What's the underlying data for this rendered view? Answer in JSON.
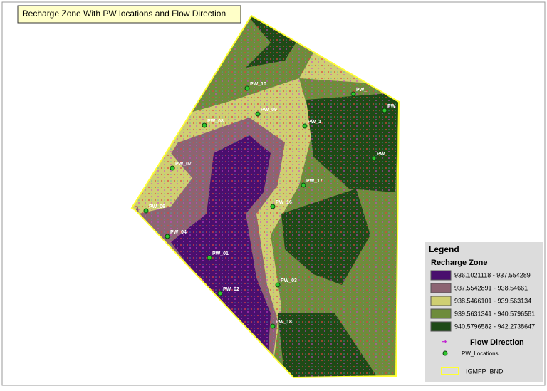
{
  "title": "Recharge Zone With PW locations and Flow Direction",
  "legend": {
    "title": "Legend",
    "recharge_zone": {
      "title": "Recharge Zone",
      "classes": [
        {
          "label": "936.1021118 - 937.554289",
          "color": "#4a0f6e"
        },
        {
          "label": "937.5542891 - 938.54661",
          "color": "#8c6472"
        },
        {
          "label": "938.5466101 - 939.563134",
          "color": "#cfcf72"
        },
        {
          "label": "939.5631341 - 940.5796581",
          "color": "#6e8c3c"
        },
        {
          "label": "940.5796582 - 942.2738647",
          "color": "#1e4a16"
        }
      ]
    },
    "flow_direction": "Flow Direction",
    "pw_locations": "PW_Locations",
    "boundary": "IGMFP_BND"
  },
  "wells": [
    "PW_10",
    "PW_09",
    "PW_08",
    "PW_07",
    "PW_06",
    "PW_04",
    "PW_01",
    "PW_02",
    "PW_03",
    "PW_18",
    "PW_16",
    "PW_17",
    "PW_1",
    "PW_",
    "PW_",
    "PW"
  ]
}
